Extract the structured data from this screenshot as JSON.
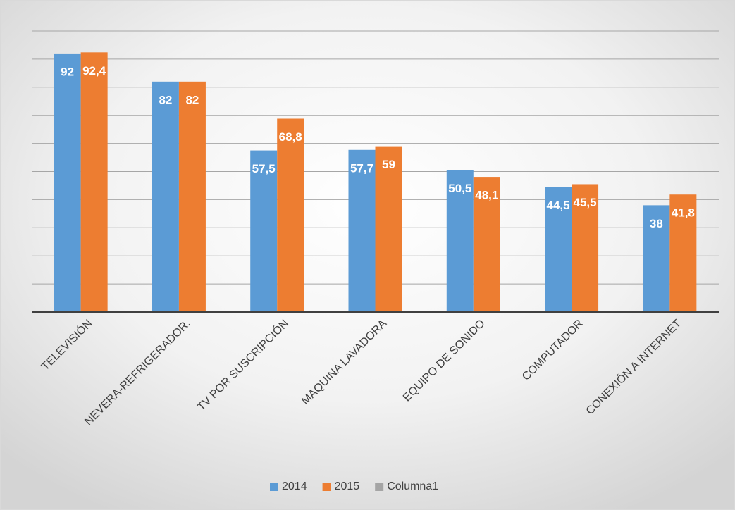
{
  "chart_data": {
    "type": "bar",
    "categories": [
      "TELEVISIÓN",
      "NEVERA-REFRIGERADOR.",
      "TV POR SUSCRIPCIÓN",
      "MAQUINA LAVADORA",
      "EQUIPO DE SONIDO",
      "COMPUTADOR",
      "CONEXIÓN A INTERNET"
    ],
    "series": [
      {
        "name": "2014",
        "color": "#5b9bd5",
        "values": [
          92,
          82,
          57.5,
          57.7,
          50.5,
          44.5,
          38
        ],
        "value_labels": [
          "92",
          "82",
          "57,5",
          "57,7",
          "50,5",
          "44,5",
          "38"
        ]
      },
      {
        "name": "2015",
        "color": "#ed7d31",
        "values": [
          92.4,
          82,
          68.8,
          59,
          48.1,
          45.5,
          41.8
        ],
        "value_labels": [
          "92,4",
          "82",
          "68,8",
          "59",
          "48,1",
          "45,5",
          "41,8"
        ]
      },
      {
        "name": "Columna1",
        "color": "#a5a5a5",
        "values": [
          null,
          null,
          null,
          null,
          null,
          null,
          null
        ]
      }
    ],
    "ylim": [
      0,
      100
    ],
    "yticks": [
      0,
      10,
      20,
      30,
      40,
      50,
      60,
      70,
      80,
      90,
      100
    ],
    "grid": true,
    "legend": "bottom"
  }
}
